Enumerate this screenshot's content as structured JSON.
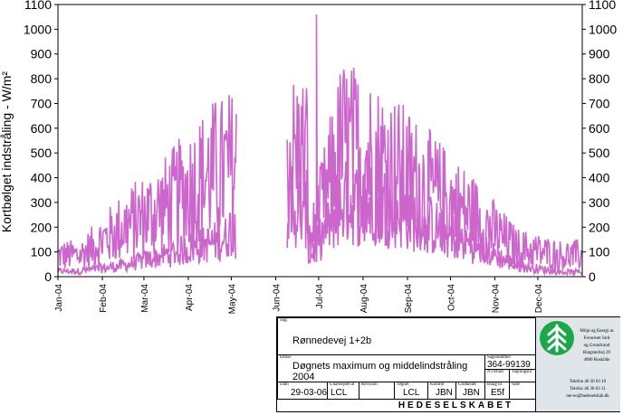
{
  "chart_data": {
    "type": "line",
    "title": "",
    "xlabel": "",
    "ylabel": "Kortbølget indstråling - W/m²",
    "ylim": [
      0,
      1100
    ],
    "yticks": [
      0,
      100,
      200,
      300,
      400,
      500,
      600,
      700,
      800,
      900,
      1000,
      1100
    ],
    "x_tick_labels": [
      "Jan-04",
      "Feb-04",
      "Mar-04",
      "Apr-04",
      "May-04",
      "Jun-04",
      "Jul-04",
      "Aug-04",
      "Sep-04",
      "Oct-04",
      "Nov-04",
      "Dec-04"
    ],
    "series_color": "#cc66cc",
    "grid": false,
    "legend": "none",
    "data_gap": [
      "2004-05-05",
      "2004-06-09"
    ],
    "envelope": {
      "months": [
        "Jan-04",
        "Feb-04",
        "Mar-04",
        "Apr-04",
        "May-04",
        "Jun-04",
        "Jul-04",
        "Aug-04",
        "Sep-04",
        "Oct-04",
        "Nov-04",
        "Dec-04"
      ],
      "approx_daily_max": [
        150,
        350,
        500,
        720,
        780,
        0,
        900,
        780,
        600,
        420,
        200,
        150
      ],
      "approx_daily_mean": [
        30,
        60,
        120,
        180,
        260,
        0,
        400,
        380,
        280,
        170,
        60,
        25
      ],
      "peak": 1060
    }
  },
  "title_block": {
    "sag_label": "Sag:",
    "sag": "Rønnedevej 1+2b",
    "emne_label": "Emne:",
    "emne_line1": "Døgnets maximum og middelindstråling",
    "emne_line2": "2004",
    "sagsnr_label": "Sagsnummer",
    "sagsnr": "364-99139",
    "meta_a": "NT/Bilaf",
    "meta_b": "Tegningsnr",
    "dato_label": "Dato",
    "dato": "29-03-06",
    "udarb_label": "Udarbejdet af",
    "udarb": "LCL",
    "revision_label": "Revision",
    "tegnet_label": "Tegnet",
    "tegnet": "LCL",
    "kontrol_label": "Kontrol",
    "kontrol": "JBN",
    "godkendt_label": "Godkendt",
    "godkendt": "JBN",
    "bilag_label": "Bilag nr",
    "bilag": "E5f",
    "side_label": "Side",
    "firm": "HEDESELSKABET",
    "company_lines": [
      "Miljø og Energi as",
      "Forureset Jord",
      "og Grundvand",
      "Ringstedvej 29",
      "4000 Roskilde"
    ],
    "contact_lines": [
      "Telefon 46 30 03 10",
      "Telefax 46 30 03 11",
      "me-eo@hedeselskab.dk"
    ]
  }
}
